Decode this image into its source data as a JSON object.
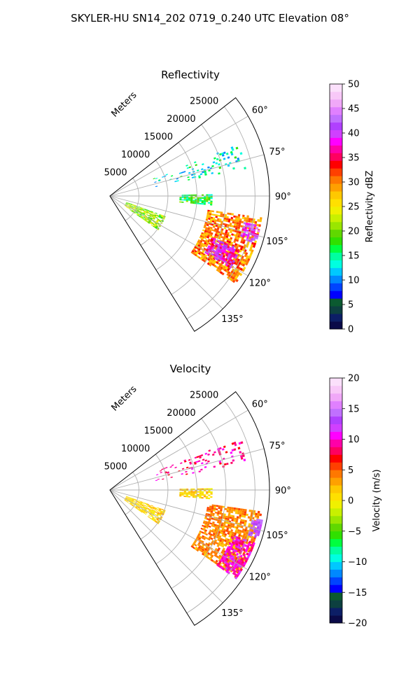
{
  "suptitle": "SKYLER-HU  SN14_202  0719_0.240 UTC Elevation 08°",
  "chart_data": [
    {
      "type": "polar-sector",
      "title": "Reflectivity",
      "radial_axis_label": "Meters",
      "radial_ticks": [
        5000,
        10000,
        15000,
        20000,
        25000
      ],
      "radial_tick_labels": [
        "5000",
        "10000",
        "15000",
        "20000",
        "25000"
      ],
      "angle_ticks_deg": [
        60,
        75,
        90,
        105,
        120,
        135
      ],
      "angle_tick_labels": [
        "60°",
        "75°",
        "90°",
        "105°",
        "120°",
        "135°"
      ],
      "theta_range_deg": [
        52,
        148
      ],
      "r_range": [
        0,
        27500
      ],
      "grid": true,
      "colorbar": {
        "label": "Reflectivity dBZ",
        "range": [
          0,
          50
        ],
        "ticks": [
          0,
          5,
          10,
          15,
          20,
          25,
          30,
          35,
          40,
          45,
          50
        ],
        "tick_labels": [
          "0",
          "5",
          "10",
          "15",
          "20",
          "25",
          "30",
          "35",
          "40",
          "45",
          "50"
        ],
        "colors": [
          "#0a0a48",
          "#0c1e66",
          "#0d4040",
          "#0b5a30",
          "#0000ff",
          "#0044ff",
          "#0088ff",
          "#00c8ff",
          "#00ffe0",
          "#00ffa0",
          "#00ff40",
          "#30e000",
          "#60d800",
          "#9ae600",
          "#c8f000",
          "#f0f000",
          "#ffe000",
          "#ffc800",
          "#ffa000",
          "#ff7800",
          "#ff4000",
          "#ff0000",
          "#ff0060",
          "#ff00a8",
          "#ff00ff",
          "#d040ff",
          "#b040ff",
          "#c070ff",
          "#e080ff",
          "#f0a8f8",
          "#f8c8f8",
          "#fbe0fb"
        ]
      },
      "echo_regions": [
        {
          "name": "northern-speckles",
          "theta": [
            68,
            78
          ],
          "r": [
            8000,
            24000
          ],
          "value_dbz": 14
        },
        {
          "name": "east-green-patch",
          "theta": [
            89,
            95
          ],
          "r": [
            12000,
            17500
          ],
          "value_dbz": 17
        },
        {
          "name": "west-cell",
          "theta": [
            110,
            125
          ],
          "r": [
            3000,
            10000
          ],
          "value_dbz": 21
        },
        {
          "name": "main-band",
          "theta": [
            98,
            125
          ],
          "r": [
            17000,
            26500
          ],
          "value_dbz": 30
        },
        {
          "name": "main-core",
          "theta": [
            112,
            121
          ],
          "r": [
            19000,
            24000
          ],
          "value_dbz": 38
        },
        {
          "name": "edge-core",
          "theta": [
            101,
            108
          ],
          "r": [
            23500,
            26500
          ],
          "value_dbz": 41
        }
      ]
    },
    {
      "type": "polar-sector",
      "title": "Velocity",
      "radial_axis_label": "Meters",
      "radial_ticks": [
        5000,
        10000,
        15000,
        20000,
        25000
      ],
      "radial_tick_labels": [
        "5000",
        "10000",
        "15000",
        "20000",
        "25000"
      ],
      "angle_ticks_deg": [
        60,
        75,
        90,
        105,
        120,
        135
      ],
      "angle_tick_labels": [
        "60°",
        "75°",
        "90°",
        "105°",
        "120°",
        "135°"
      ],
      "theta_range_deg": [
        52,
        148
      ],
      "r_range": [
        0,
        27500
      ],
      "grid": true,
      "colorbar": {
        "label": "Velocity (m/s)",
        "range": [
          -20,
          20
        ],
        "ticks": [
          -20,
          -15,
          -10,
          -5,
          0,
          5,
          10,
          15,
          20
        ],
        "tick_labels": [
          "−20",
          "−15",
          "−10",
          "−5",
          "0",
          "5",
          "10",
          "15",
          "20"
        ],
        "colors": [
          "#0a0a48",
          "#0c1e66",
          "#0d4040",
          "#0b5a30",
          "#0000ff",
          "#0044ff",
          "#0088ff",
          "#00c8ff",
          "#00ffe0",
          "#00ffa0",
          "#00ff40",
          "#30e000",
          "#60d800",
          "#9ae600",
          "#c8f000",
          "#f0f000",
          "#ffe000",
          "#ffc800",
          "#ffa000",
          "#ff7800",
          "#ff4000",
          "#ff0000",
          "#ff0060",
          "#ff00a8",
          "#ff00ff",
          "#d040ff",
          "#b040ff",
          "#c070ff",
          "#e080ff",
          "#f0a8f8",
          "#f8c8f8",
          "#fbe0fb"
        ]
      },
      "echo_regions": [
        {
          "name": "northern-speckles",
          "theta": [
            68,
            78
          ],
          "r": [
            8000,
            24000
          ],
          "value_ms": 9
        },
        {
          "name": "east-patch",
          "theta": [
            89,
            95
          ],
          "r": [
            12000,
            17500
          ],
          "value_ms": 1
        },
        {
          "name": "west-cell",
          "theta": [
            110,
            125
          ],
          "r": [
            3000,
            10000
          ],
          "value_ms": 1
        },
        {
          "name": "main-band",
          "theta": [
            98,
            125
          ],
          "r": [
            17000,
            26500
          ],
          "value_ms": 4
        },
        {
          "name": "outer-rim",
          "theta": [
            110,
            125
          ],
          "r": [
            22500,
            26500
          ],
          "value_ms": 10
        },
        {
          "name": "edge-core",
          "theta": [
            101,
            108
          ],
          "r": [
            25000,
            26800
          ],
          "value_ms": 13
        }
      ]
    }
  ]
}
